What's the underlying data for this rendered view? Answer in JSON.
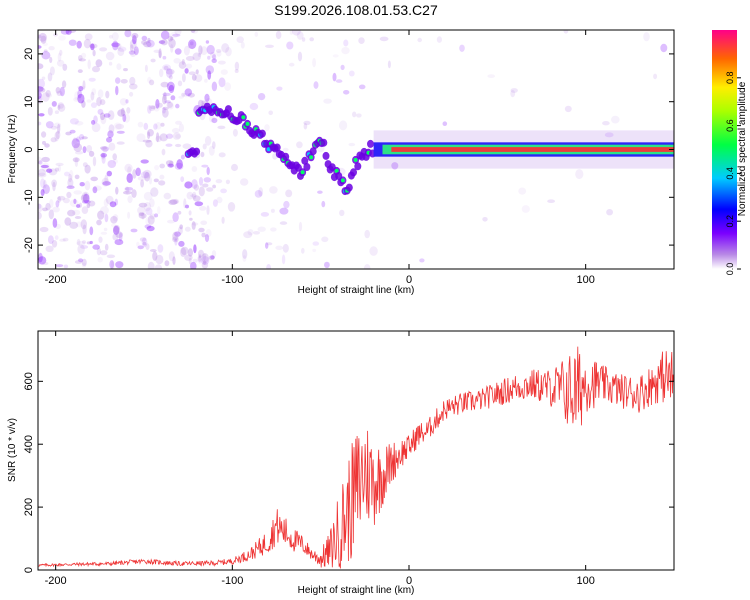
{
  "title": "S199.2026.108.01.53.C27",
  "chart_data": [
    {
      "type": "heatmap",
      "name": "spectrogram",
      "xlabel": "Height of straight line (km)",
      "ylabel": "Frequency (Hz)",
      "xlim": [
        -210,
        150
      ],
      "ylim": [
        -25,
        25
      ],
      "x_ticks": [
        "-200",
        "-100",
        "0",
        "100"
      ],
      "y_ticks": [
        "20",
        "10",
        "0",
        "-10",
        "-20"
      ],
      "colorbar": {
        "label": "Normalized spectral amplitude",
        "range": [
          0.0,
          1.0
        ],
        "ticks": [
          "0.0",
          "0.2",
          "0.4",
          "0.6",
          "0.8"
        ]
      },
      "ridge": [
        {
          "x": -120,
          "y": 9
        },
        {
          "x": -100,
          "y": 7
        },
        {
          "x": -90,
          "y": 5
        },
        {
          "x": -80,
          "y": 1
        },
        {
          "x": -70,
          "y": -2
        },
        {
          "x": -62,
          "y": -5
        },
        {
          "x": -55,
          "y": -1
        },
        {
          "x": -50,
          "y": 2
        },
        {
          "x": -45,
          "y": -3
        },
        {
          "x": -40,
          "y": -6
        },
        {
          "x": -35,
          "y": -8
        },
        {
          "x": -30,
          "y": -3
        },
        {
          "x": -25,
          "y": -1
        },
        {
          "x": -20,
          "y": 0.5
        },
        {
          "x": -10,
          "y": 0
        },
        {
          "x": 0,
          "y": 0.5
        },
        {
          "x": 150,
          "y": 0
        }
      ]
    },
    {
      "type": "line",
      "name": "snr",
      "xlabel": "Height of straight line (km)",
      "ylabel": "SNR (10 * v/v)",
      "xlim": [
        -210,
        150
      ],
      "ylim": [
        0,
        760
      ],
      "x_ticks": [
        "-200",
        "-100",
        "0",
        "100"
      ],
      "y_ticks": [
        "0",
        "200",
        "400",
        "600"
      ],
      "series": [
        {
          "name": "SNR",
          "color": "#ee3333",
          "x": [
            -210,
            -190,
            -170,
            -150,
            -130,
            -110,
            -100,
            -90,
            -80,
            -75,
            -70,
            -65,
            -60,
            -55,
            -50,
            -45,
            -40,
            -35,
            -30,
            -25,
            -20,
            -15,
            -10,
            -5,
            0,
            5,
            10,
            20,
            30,
            40,
            50,
            60,
            70,
            80,
            90,
            95,
            100,
            110,
            120,
            130,
            140,
            145,
            150
          ],
          "values": [
            15,
            18,
            20,
            28,
            20,
            22,
            28,
            50,
            90,
            140,
            120,
            95,
            80,
            50,
            35,
            60,
            120,
            180,
            250,
            320,
            280,
            300,
            340,
            370,
            390,
            430,
            440,
            510,
            530,
            540,
            560,
            580,
            590,
            580,
            570,
            560,
            600,
            590,
            570,
            560,
            600,
            620,
            600
          ],
          "amplitude": [
            4,
            5,
            6,
            8,
            7,
            8,
            10,
            20,
            40,
            60,
            50,
            40,
            30,
            20,
            30,
            60,
            120,
            170,
            200,
            180,
            150,
            100,
            70,
            50,
            40,
            40,
            35,
            35,
            35,
            35,
            40,
            45,
            50,
            60,
            120,
            160,
            100,
            60,
            55,
            60,
            70,
            90,
            100
          ]
        }
      ]
    }
  ]
}
